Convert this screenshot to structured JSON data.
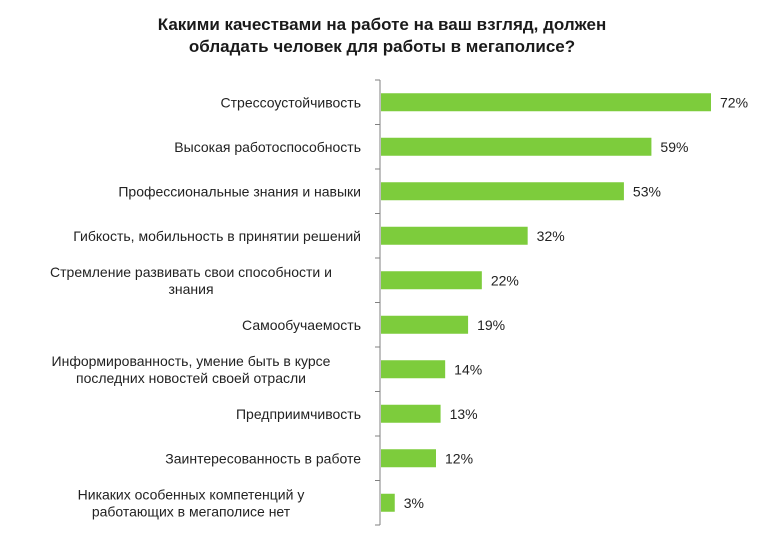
{
  "chart_data": {
    "type": "bar",
    "orientation": "horizontal",
    "title": "Какими качествами на работе на ваш взгляд, должен\nобладать человек для работы в мегаполисе?",
    "categories": [
      "Стрессоустойчивость",
      "Высокая работоспособность",
      "Профессиональные знания и навыки",
      "Гибкость, мобильность в принятии решений",
      "Стремление развивать свои способности и знания",
      "Самообучаемость",
      "Информированность, умение быть в курсе последних новостей своей отрасли",
      "Предприимчивость",
      "Заинтересованность в работе",
      "Никаких особенных компетенций у работающих в мегаполисе нет"
    ],
    "category_lines": [
      [
        "Стрессоустойчивость"
      ],
      [
        "Высокая работоспособность"
      ],
      [
        "Профессиональные знания и навыки"
      ],
      [
        "Гибкость, мобильность в принятии решений"
      ],
      [
        "Стремление развивать свои способности и",
        "знания"
      ],
      [
        "Самообучаемость"
      ],
      [
        "Информированность, умение быть в курсе",
        "последних новостей своей отрасли"
      ],
      [
        "Предприимчивость"
      ],
      [
        "Заинтересованность в работе"
      ],
      [
        "Никаких особенных компетенций у",
        "работающих в мегаполисе нет"
      ]
    ],
    "values": [
      72,
      59,
      53,
      32,
      22,
      19,
      14,
      13,
      12,
      3
    ],
    "value_labels": [
      "72%",
      "59%",
      "53%",
      "32%",
      "22%",
      "19%",
      "14%",
      "13%",
      "12%",
      "3%"
    ],
    "unit": "%",
    "xlim": [
      0,
      100
    ],
    "grid": false,
    "legend": "none",
    "bar_color": "#7dcc3c"
  }
}
